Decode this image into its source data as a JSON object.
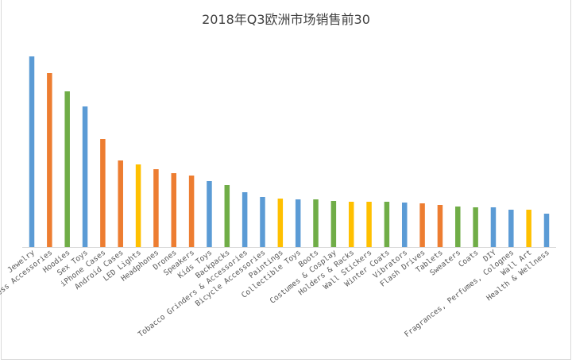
{
  "chart_data": {
    "type": "bar",
    "title": "2018年Q3欧洲市场销售前30",
    "xlabel": "",
    "ylabel": "",
    "y_axis_shown": false,
    "grid": false,
    "legend": "none",
    "note_values": "relative bar heights (no y-axis printed)",
    "categories": [
      "Jewelry",
      "Wireless Accessories",
      "Hoodies",
      "Sex Toys",
      "iPhone Cases",
      "Android Cases",
      "LED Lights",
      "Headphones",
      "Drones",
      "Speakers",
      "Kids Toys",
      "Backpacks",
      "Tobacco Grinders & Accessories",
      "Bicycle Accessories",
      "Paintings",
      "Collectible Toys",
      "Boots",
      "Costumes & Cosplay",
      "Holders & Racks",
      "Wall Stickers",
      "Winter Coats",
      "Vibrators",
      "Flash Drives",
      "Tablets",
      "Sweaters",
      "Coats",
      "DIY",
      "Fragrances, Perfumes, Colognes",
      "Wall Art",
      "Health & Wellness"
    ],
    "values": [
      240,
      219,
      196,
      177,
      136,
      109,
      104,
      98,
      93,
      90,
      83,
      78,
      69,
      63,
      61,
      60,
      60,
      58,
      57,
      57,
      57,
      56,
      55,
      53,
      51,
      50,
      50,
      47,
      47,
      42
    ],
    "colors": [
      "#5b9bd5",
      "#ed7d31",
      "#70ad47",
      "#5b9bd5",
      "#ed7d31",
      "#ed7d31",
      "#ffc000",
      "#ed7d31",
      "#ed7d31",
      "#ed7d31",
      "#5b9bd5",
      "#70ad47",
      "#5b9bd5",
      "#5b9bd5",
      "#ffc000",
      "#5b9bd5",
      "#70ad47",
      "#70ad47",
      "#ffc000",
      "#ffc000",
      "#70ad47",
      "#5b9bd5",
      "#ed7d31",
      "#ed7d31",
      "#70ad47",
      "#70ad47",
      "#5b9bd5",
      "#5b9bd5",
      "#ffc000",
      "#5b9bd5"
    ]
  }
}
